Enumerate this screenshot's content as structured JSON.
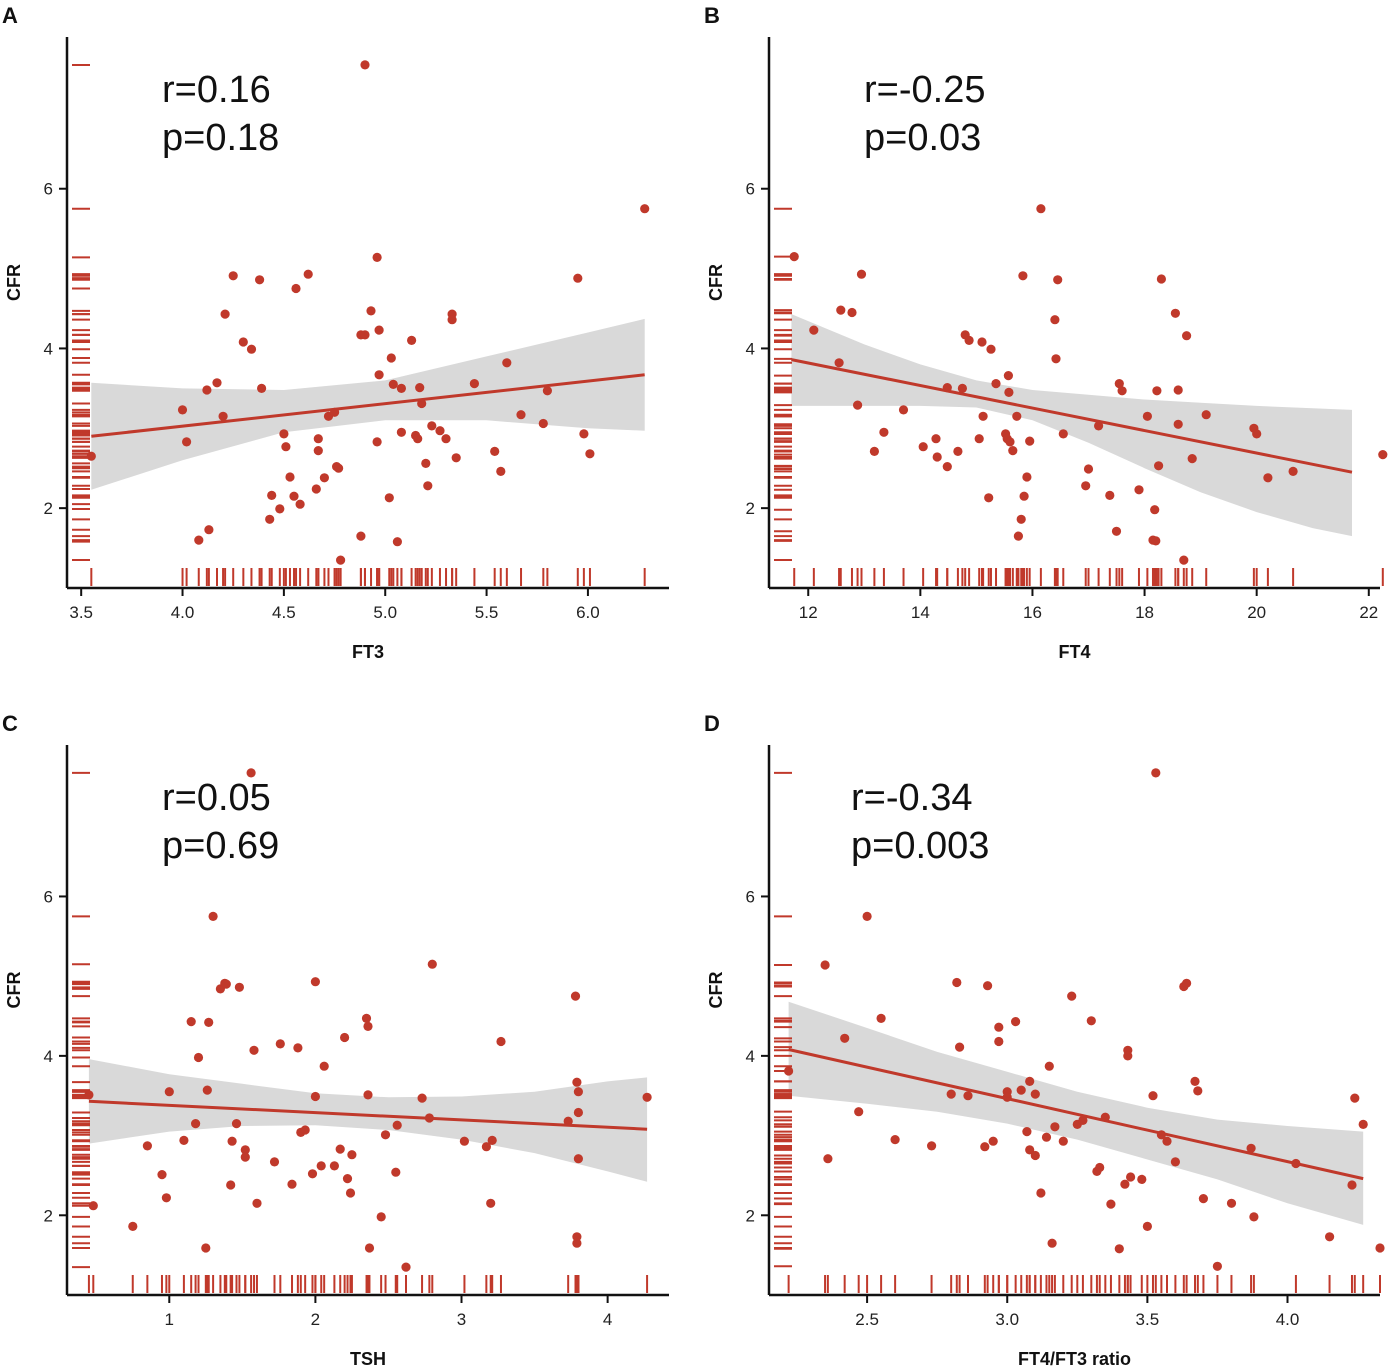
{
  "colors": {
    "point": "#c0392b",
    "rug": "#c0392b",
    "fit": "#c0392b",
    "band": "#d9d9d9",
    "axis": "#111111"
  },
  "chart_data": [
    {
      "panel": "A",
      "type": "scatter",
      "xlabel": "FT3",
      "ylabel": "CFR",
      "stat_r": "r=0.16",
      "stat_p": "p=0.18",
      "xlim": [
        3.43,
        6.4
      ],
      "ylim": [
        1.0,
        7.9
      ],
      "xticks": [
        3.5,
        4.0,
        4.5,
        5.0,
        5.5,
        6.0
      ],
      "xtick_labels": [
        "3.5",
        "4.0",
        "4.5",
        "5.0",
        "5.5",
        "6.0"
      ],
      "yticks": [
        2,
        4,
        6
      ],
      "ytick_labels": [
        "2",
        "4",
        "6"
      ],
      "fit": {
        "x": [
          3.55,
          6.28
        ],
        "y": [
          2.9,
          3.67
        ]
      },
      "band": {
        "x": [
          3.55,
          4.0,
          4.5,
          5.0,
          5.5,
          6.0,
          6.28
        ],
        "lower": [
          2.23,
          2.6,
          2.95,
          3.1,
          3.1,
          3.0,
          2.97
        ],
        "upper": [
          3.57,
          3.5,
          3.48,
          3.6,
          3.9,
          4.2,
          4.37
        ]
      },
      "points": [
        [
          3.55,
          2.65
        ],
        [
          4.0,
          3.23
        ],
        [
          4.02,
          2.83
        ],
        [
          4.08,
          1.6
        ],
        [
          4.12,
          3.48
        ],
        [
          4.13,
          1.73
        ],
        [
          4.17,
          3.57
        ],
        [
          4.2,
          3.15
        ],
        [
          4.21,
          4.43
        ],
        [
          4.25,
          4.91
        ],
        [
          4.3,
          4.08
        ],
        [
          4.34,
          3.99
        ],
        [
          4.38,
          4.86
        ],
        [
          4.39,
          3.5
        ],
        [
          4.43,
          1.86
        ],
        [
          4.44,
          2.16
        ],
        [
          4.48,
          1.99
        ],
        [
          4.5,
          2.93
        ],
        [
          4.51,
          2.77
        ],
        [
          4.53,
          2.39
        ],
        [
          4.55,
          2.15
        ],
        [
          4.56,
          4.75
        ],
        [
          4.58,
          2.05
        ],
        [
          4.62,
          4.93
        ],
        [
          4.66,
          2.24
        ],
        [
          4.67,
          2.72
        ],
        [
          4.67,
          2.87
        ],
        [
          4.7,
          2.38
        ],
        [
          4.72,
          3.15
        ],
        [
          4.75,
          3.2
        ],
        [
          4.76,
          2.52
        ],
        [
          4.77,
          2.5
        ],
        [
          4.78,
          1.35
        ],
        [
          4.88,
          1.65
        ],
        [
          4.88,
          4.17
        ],
        [
          4.9,
          4.17
        ],
        [
          4.9,
          7.55
        ],
        [
          4.93,
          4.47
        ],
        [
          4.96,
          2.83
        ],
        [
          4.96,
          5.14
        ],
        [
          4.97,
          4.23
        ],
        [
          4.97,
          3.67
        ],
        [
          5.02,
          2.13
        ],
        [
          5.03,
          3.88
        ],
        [
          5.04,
          3.55
        ],
        [
          5.06,
          1.58
        ],
        [
          5.08,
          3.5
        ],
        [
          5.08,
          2.95
        ],
        [
          5.13,
          4.1
        ],
        [
          5.15,
          2.91
        ],
        [
          5.16,
          2.87
        ],
        [
          5.17,
          3.51
        ],
        [
          5.18,
          3.31
        ],
        [
          5.2,
          2.56
        ],
        [
          5.21,
          2.28
        ],
        [
          5.23,
          3.03
        ],
        [
          5.27,
          2.97
        ],
        [
          5.3,
          2.87
        ],
        [
          5.33,
          4.43
        ],
        [
          5.33,
          4.36
        ],
        [
          5.35,
          2.63
        ],
        [
          5.44,
          3.56
        ],
        [
          5.54,
          2.71
        ],
        [
          5.57,
          2.46
        ],
        [
          5.6,
          3.82
        ],
        [
          5.67,
          3.17
        ],
        [
          5.78,
          3.06
        ],
        [
          5.8,
          3.47
        ],
        [
          5.95,
          4.88
        ],
        [
          5.98,
          2.93
        ],
        [
          6.01,
          2.68
        ],
        [
          6.28,
          5.75
        ]
      ]
    },
    {
      "panel": "B",
      "type": "scatter",
      "xlabel": "FT4",
      "ylabel": "CFR",
      "stat_r": "r=-0.25",
      "stat_p": "p=0.03",
      "xlim": [
        11.3,
        22.2
      ],
      "ylim": [
        1.0,
        7.9
      ],
      "xticks": [
        12,
        14,
        16,
        18,
        20,
        22
      ],
      "xtick_labels": [
        "12",
        "14",
        "16",
        "18",
        "20",
        "22"
      ],
      "yticks": [
        2,
        4,
        6
      ],
      "ytick_labels": [
        "2",
        "4",
        "6"
      ],
      "fit": {
        "x": [
          11.7,
          21.7
        ],
        "y": [
          3.86,
          2.45
        ]
      },
      "band": {
        "x": [
          11.7,
          13,
          14,
          15,
          16,
          17,
          18,
          19,
          20,
          21,
          21.7
        ],
        "lower": [
          3.28,
          3.28,
          3.28,
          3.26,
          3.1,
          2.82,
          2.5,
          2.2,
          1.95,
          1.75,
          1.65
        ],
        "upper": [
          4.43,
          4.05,
          3.8,
          3.6,
          3.48,
          3.42,
          3.36,
          3.32,
          3.28,
          3.25,
          3.23
        ]
      },
      "points": [
        [
          11.75,
          5.15
        ],
        [
          12.1,
          4.23
        ],
        [
          12.55,
          3.82
        ],
        [
          12.58,
          4.48
        ],
        [
          12.78,
          4.45
        ],
        [
          12.88,
          3.29
        ],
        [
          12.95,
          4.93
        ],
        [
          13.18,
          2.71
        ],
        [
          13.35,
          2.95
        ],
        [
          13.7,
          3.23
        ],
        [
          14.05,
          2.77
        ],
        [
          14.3,
          2.64
        ],
        [
          14.28,
          2.87
        ],
        [
          14.48,
          2.52
        ],
        [
          14.48,
          3.51
        ],
        [
          14.67,
          2.71
        ],
        [
          14.75,
          3.5
        ],
        [
          14.8,
          4.17
        ],
        [
          14.87,
          4.1
        ],
        [
          15.05,
          2.87
        ],
        [
          15.1,
          4.08
        ],
        [
          15.12,
          3.15
        ],
        [
          15.22,
          2.13
        ],
        [
          15.26,
          3.99
        ],
        [
          15.35,
          3.56
        ],
        [
          15.52,
          2.93
        ],
        [
          15.55,
          2.87
        ],
        [
          15.57,
          3.66
        ],
        [
          15.58,
          3.45
        ],
        [
          15.6,
          2.83
        ],
        [
          15.65,
          2.72
        ],
        [
          15.72,
          3.15
        ],
        [
          15.75,
          1.65
        ],
        [
          15.8,
          1.86
        ],
        [
          15.83,
          4.91
        ],
        [
          15.85,
          2.15
        ],
        [
          15.9,
          2.39
        ],
        [
          15.95,
          2.84
        ],
        [
          16.15,
          5.75
        ],
        [
          16.4,
          4.36
        ],
        [
          16.42,
          3.87
        ],
        [
          16.45,
          4.86
        ],
        [
          16.55,
          2.93
        ],
        [
          16.95,
          2.28
        ],
        [
          17.0,
          2.49
        ],
        [
          17.18,
          3.03
        ],
        [
          17.38,
          2.16
        ],
        [
          17.5,
          1.71
        ],
        [
          17.55,
          3.56
        ],
        [
          17.6,
          3.47
        ],
        [
          17.9,
          2.23
        ],
        [
          18.05,
          3.15
        ],
        [
          18.15,
          1.6
        ],
        [
          18.18,
          1.98
        ],
        [
          18.2,
          1.59
        ],
        [
          18.22,
          3.47
        ],
        [
          18.25,
          2.53
        ],
        [
          18.3,
          4.87
        ],
        [
          18.55,
          4.44
        ],
        [
          18.6,
          3.48
        ],
        [
          18.6,
          3.05
        ],
        [
          18.7,
          1.35
        ],
        [
          18.75,
          4.16
        ],
        [
          18.85,
          2.62
        ],
        [
          19.1,
          3.17
        ],
        [
          19.95,
          3.0
        ],
        [
          20.0,
          2.93
        ],
        [
          20.2,
          2.38
        ],
        [
          20.65,
          2.46
        ],
        [
          22.25,
          2.67
        ]
      ]
    },
    {
      "panel": "C",
      "type": "scatter",
      "xlabel": "TSH",
      "ylabel": "CFR",
      "stat_r": "r=0.05",
      "stat_p": "p=0.69",
      "xlim": [
        0.3,
        4.42
      ],
      "ylim": [
        1.0,
        7.9
      ],
      "xticks": [
        1,
        2,
        3,
        4
      ],
      "xtick_labels": [
        "1",
        "2",
        "3",
        "4"
      ],
      "yticks": [
        2,
        4,
        6
      ],
      "ytick_labels": [
        "2",
        "4",
        "6"
      ],
      "fit": {
        "x": [
          0.45,
          4.27
        ],
        "y": [
          3.43,
          3.08
        ]
      },
      "band": {
        "x": [
          0.45,
          1.0,
          1.5,
          2.0,
          2.5,
          3.0,
          3.5,
          4.0,
          4.27
        ],
        "lower": [
          2.9,
          3.05,
          3.12,
          3.13,
          3.07,
          2.95,
          2.78,
          2.55,
          2.42
        ],
        "upper": [
          3.96,
          3.77,
          3.65,
          3.53,
          3.48,
          3.49,
          3.55,
          3.68,
          3.73
        ]
      },
      "points": [
        [
          0.45,
          3.51
        ],
        [
          0.48,
          2.12
        ],
        [
          0.75,
          1.86
        ],
        [
          0.85,
          2.87
        ],
        [
          0.95,
          2.51
        ],
        [
          0.98,
          2.22
        ],
        [
          1.0,
          3.55
        ],
        [
          1.1,
          2.94
        ],
        [
          1.15,
          4.43
        ],
        [
          1.18,
          3.15
        ],
        [
          1.2,
          3.98
        ],
        [
          1.25,
          1.59
        ],
        [
          1.26,
          3.57
        ],
        [
          1.27,
          4.42
        ],
        [
          1.3,
          5.75
        ],
        [
          1.35,
          4.84
        ],
        [
          1.38,
          4.91
        ],
        [
          1.39,
          4.9
        ],
        [
          1.42,
          2.38
        ],
        [
          1.43,
          2.93
        ],
        [
          1.46,
          3.15
        ],
        [
          1.48,
          4.86
        ],
        [
          1.52,
          2.82
        ],
        [
          1.52,
          2.73
        ],
        [
          1.56,
          7.55
        ],
        [
          1.58,
          4.07
        ],
        [
          1.6,
          2.15
        ],
        [
          1.72,
          2.67
        ],
        [
          1.76,
          4.15
        ],
        [
          1.84,
          2.39
        ],
        [
          1.88,
          4.1
        ],
        [
          1.9,
          3.04
        ],
        [
          1.93,
          3.07
        ],
        [
          1.98,
          2.52
        ],
        [
          2.0,
          4.93
        ],
        [
          2.0,
          3.49
        ],
        [
          2.04,
          2.62
        ],
        [
          2.06,
          3.87
        ],
        [
          2.13,
          2.62
        ],
        [
          2.17,
          2.83
        ],
        [
          2.2,
          4.23
        ],
        [
          2.22,
          2.46
        ],
        [
          2.24,
          2.28
        ],
        [
          2.25,
          2.76
        ],
        [
          2.35,
          4.47
        ],
        [
          2.36,
          4.37
        ],
        [
          2.36,
          3.51
        ],
        [
          2.37,
          1.59
        ],
        [
          2.45,
          1.98
        ],
        [
          2.48,
          3.01
        ],
        [
          2.55,
          2.54
        ],
        [
          2.56,
          3.13
        ],
        [
          2.62,
          1.35
        ],
        [
          2.73,
          3.47
        ],
        [
          2.78,
          3.22
        ],
        [
          2.8,
          5.15
        ],
        [
          3.02,
          2.93
        ],
        [
          3.17,
          2.86
        ],
        [
          3.21,
          2.94
        ],
        [
          3.2,
          2.15
        ],
        [
          3.27,
          4.18
        ],
        [
          3.73,
          3.18
        ],
        [
          3.78,
          4.75
        ],
        [
          3.79,
          3.67
        ],
        [
          3.8,
          3.55
        ],
        [
          3.8,
          3.29
        ],
        [
          3.8,
          2.71
        ],
        [
          3.79,
          1.73
        ],
        [
          3.79,
          1.65
        ],
        [
          4.27,
          3.48
        ]
      ]
    },
    {
      "panel": "D",
      "type": "scatter",
      "xlabel": "FT4/FT3 ratio",
      "ylabel": "CFR",
      "stat_r": "r=-0.34",
      "stat_p": "p=0.003",
      "xlim": [
        2.15,
        4.33
      ],
      "ylim": [
        1.0,
        7.9
      ],
      "xticks": [
        2.5,
        3.0,
        3.5,
        4.0
      ],
      "xtick_labels": [
        "2.5",
        "3.0",
        "3.5",
        "4.0"
      ],
      "yticks": [
        2,
        4,
        6
      ],
      "ytick_labels": [
        "2",
        "4",
        "6"
      ],
      "fit": {
        "x": [
          2.22,
          4.27
        ],
        "y": [
          4.08,
          2.46
        ]
      },
      "band": {
        "x": [
          2.22,
          2.5,
          2.75,
          3.0,
          3.25,
          3.5,
          3.75,
          4.0,
          4.27
        ],
        "lower": [
          3.5,
          3.4,
          3.3,
          3.15,
          2.95,
          2.7,
          2.45,
          2.15,
          1.88
        ],
        "upper": [
          4.68,
          4.35,
          4.05,
          3.8,
          3.55,
          3.35,
          3.2,
          3.12,
          3.05
        ]
      },
      "points": [
        [
          2.22,
          3.81
        ],
        [
          2.35,
          5.14
        ],
        [
          2.36,
          2.71
        ],
        [
          2.42,
          4.22
        ],
        [
          2.47,
          3.3
        ],
        [
          2.5,
          5.75
        ],
        [
          2.55,
          4.47
        ],
        [
          2.6,
          2.95
        ],
        [
          2.73,
          2.87
        ],
        [
          2.8,
          3.52
        ],
        [
          2.82,
          4.92
        ],
        [
          2.83,
          4.11
        ],
        [
          2.86,
          3.5
        ],
        [
          2.92,
          2.86
        ],
        [
          2.93,
          4.88
        ],
        [
          2.95,
          2.93
        ],
        [
          2.97,
          4.36
        ],
        [
          2.97,
          4.18
        ],
        [
          3.0,
          3.55
        ],
        [
          3.0,
          3.48
        ],
        [
          3.03,
          4.43
        ],
        [
          3.05,
          3.57
        ],
        [
          3.07,
          3.05
        ],
        [
          3.08,
          2.82
        ],
        [
          3.08,
          3.68
        ],
        [
          3.1,
          3.52
        ],
        [
          3.1,
          2.75
        ],
        [
          3.12,
          2.28
        ],
        [
          3.14,
          2.98
        ],
        [
          3.15,
          3.87
        ],
        [
          3.16,
          1.65
        ],
        [
          3.17,
          3.11
        ],
        [
          3.2,
          2.93
        ],
        [
          3.23,
          4.75
        ],
        [
          3.25,
          3.14
        ],
        [
          3.27,
          3.19
        ],
        [
          3.3,
          4.44
        ],
        [
          3.32,
          2.55
        ],
        [
          3.33,
          2.6
        ],
        [
          3.35,
          3.23
        ],
        [
          3.37,
          2.14
        ],
        [
          3.4,
          1.58
        ],
        [
          3.42,
          2.39
        ],
        [
          3.43,
          4.07
        ],
        [
          3.43,
          4.0
        ],
        [
          3.44,
          2.48
        ],
        [
          3.48,
          2.45
        ],
        [
          3.5,
          1.86
        ],
        [
          3.53,
          7.55
        ],
        [
          3.55,
          3.01
        ],
        [
          3.57,
          2.93
        ],
        [
          3.6,
          2.67
        ],
        [
          3.63,
          4.87
        ],
        [
          3.64,
          4.91
        ],
        [
          3.67,
          3.68
        ],
        [
          3.68,
          3.56
        ],
        [
          3.7,
          2.21
        ],
        [
          3.75,
          1.36
        ],
        [
          3.8,
          2.15
        ],
        [
          3.87,
          2.84
        ],
        [
          3.88,
          1.98
        ],
        [
          4.03,
          2.65
        ],
        [
          4.15,
          1.73
        ],
        [
          4.23,
          2.38
        ],
        [
          4.24,
          3.47
        ],
        [
          4.27,
          3.14
        ],
        [
          4.33,
          1.59
        ],
        [
          3.52,
          3.5
        ]
      ]
    }
  ]
}
